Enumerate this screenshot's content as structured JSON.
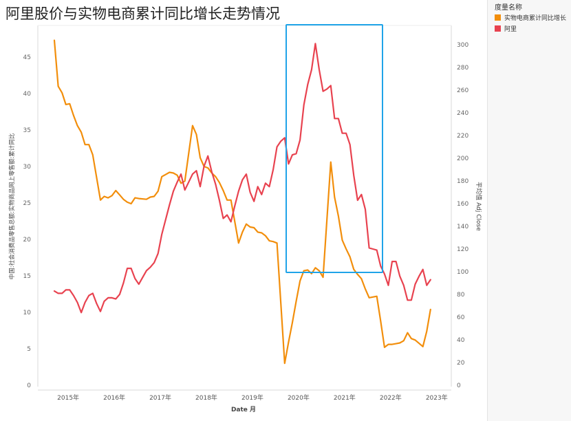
{
  "title": "阿里股价与实物电商累计同比增长走势情况",
  "legend": {
    "title": "度量名称",
    "items": [
      {
        "label": "实物电商累计同比增长",
        "color": "#f28e0b"
      },
      {
        "label": "阿里",
        "color": "#e8424f"
      }
    ]
  },
  "chart_data": {
    "type": "line",
    "xlabel": "Date 月",
    "ylabel_left": "中国:社会消费品零售总额:实物商品网上零售额:累计同比",
    "ylabel_right": "平均值 Adj Close",
    "x_ticks": [
      "2015年",
      "2016年",
      "2017年",
      "2018年",
      "2019年",
      "2020年",
      "2021年",
      "2022年",
      "2023年"
    ],
    "y_left_ticks": [
      0,
      5,
      10,
      15,
      20,
      25,
      30,
      35,
      40,
      45
    ],
    "y_right_ticks": [
      0,
      20,
      40,
      60,
      80,
      100,
      120,
      140,
      160,
      180,
      200,
      220,
      240,
      260,
      280,
      300
    ],
    "y_left_range": [
      0,
      49
    ],
    "y_right_range": [
      0,
      320
    ],
    "grid": false,
    "highlight_box": {
      "x_range": [
        "2020-02",
        "2022-03"
      ],
      "color": "#1fa3e8"
    },
    "series": [
      {
        "name": "实物电商累计同比增长",
        "axis": "left",
        "color": "#f28e0b",
        "points": [
          [
            "2015-02",
            47.3
          ],
          [
            "2015-03",
            41.0
          ],
          [
            "2015-04",
            40.1
          ],
          [
            "2015-05",
            38.5
          ],
          [
            "2015-06",
            38.6
          ],
          [
            "2015-07",
            37.0
          ],
          [
            "2015-08",
            35.6
          ],
          [
            "2015-09",
            34.7
          ],
          [
            "2015-10",
            33.0
          ],
          [
            "2015-11",
            33.0
          ],
          [
            "2015-12",
            31.6
          ],
          [
            "2016-02",
            25.4
          ],
          [
            "2016-03",
            25.9
          ],
          [
            "2016-04",
            25.7
          ],
          [
            "2016-05",
            26.0
          ],
          [
            "2016-06",
            26.7
          ],
          [
            "2016-07",
            26.1
          ],
          [
            "2016-08",
            25.5
          ],
          [
            "2016-09",
            25.1
          ],
          [
            "2016-10",
            24.9
          ],
          [
            "2016-11",
            25.7
          ],
          [
            "2016-12",
            25.6
          ],
          [
            "2017-02",
            25.5
          ],
          [
            "2017-03",
            25.8
          ],
          [
            "2017-04",
            25.9
          ],
          [
            "2017-05",
            26.6
          ],
          [
            "2017-06",
            28.6
          ],
          [
            "2017-07",
            28.9
          ],
          [
            "2017-08",
            29.2
          ],
          [
            "2017-09",
            29.1
          ],
          [
            "2017-10",
            28.8
          ],
          [
            "2017-11",
            27.7
          ],
          [
            "2017-12",
            28.0
          ],
          [
            "2018-02",
            35.6
          ],
          [
            "2018-03",
            34.4
          ],
          [
            "2018-04",
            31.2
          ],
          [
            "2018-05",
            30.0
          ],
          [
            "2018-06",
            29.8
          ],
          [
            "2018-07",
            29.1
          ],
          [
            "2018-08",
            28.6
          ],
          [
            "2018-09",
            27.8
          ],
          [
            "2018-10",
            26.7
          ],
          [
            "2018-11",
            25.4
          ],
          [
            "2018-12",
            25.4
          ],
          [
            "2019-02",
            19.5
          ],
          [
            "2019-03",
            21.0
          ],
          [
            "2019-04",
            22.1
          ],
          [
            "2019-05",
            21.7
          ],
          [
            "2019-06",
            21.6
          ],
          [
            "2019-07",
            21.0
          ],
          [
            "2019-08",
            20.9
          ],
          [
            "2019-09",
            20.5
          ],
          [
            "2019-10",
            19.8
          ],
          [
            "2019-11",
            19.7
          ],
          [
            "2019-12",
            19.5
          ],
          [
            "2020-02",
            3.0
          ],
          [
            "2020-03",
            5.9
          ],
          [
            "2020-04",
            8.6
          ],
          [
            "2020-05",
            11.5
          ],
          [
            "2020-06",
            14.3
          ],
          [
            "2020-07",
            15.7
          ],
          [
            "2020-08",
            15.8
          ],
          [
            "2020-09",
            15.3
          ],
          [
            "2020-10",
            16.1
          ],
          [
            "2020-11",
            15.7
          ],
          [
            "2020-12",
            14.8
          ],
          [
            "2021-02",
            30.6
          ],
          [
            "2021-03",
            25.8
          ],
          [
            "2021-04",
            23.2
          ],
          [
            "2021-05",
            19.9
          ],
          [
            "2021-06",
            18.7
          ],
          [
            "2021-07",
            17.6
          ],
          [
            "2021-08",
            15.9
          ],
          [
            "2021-09",
            15.2
          ],
          [
            "2021-10",
            14.6
          ],
          [
            "2021-11",
            13.2
          ],
          [
            "2021-12",
            12.0
          ],
          [
            "2022-02",
            12.2
          ],
          [
            "2022-03",
            8.8
          ],
          [
            "2022-04",
            5.2
          ],
          [
            "2022-05",
            5.6
          ],
          [
            "2022-06",
            5.6
          ],
          [
            "2022-07",
            5.7
          ],
          [
            "2022-08",
            5.8
          ],
          [
            "2022-09",
            6.1
          ],
          [
            "2022-10",
            7.2
          ],
          [
            "2022-11",
            6.4
          ],
          [
            "2022-12",
            6.2
          ],
          [
            "2023-02",
            5.3
          ],
          [
            "2023-03",
            7.4
          ],
          [
            "2023-04",
            10.4
          ]
        ]
      },
      {
        "name": "阿里",
        "axis": "right",
        "color": "#e8424f",
        "points": [
          [
            "2015-02",
            83
          ],
          [
            "2015-03",
            81
          ],
          [
            "2015-04",
            81
          ],
          [
            "2015-05",
            84
          ],
          [
            "2015-06",
            84
          ],
          [
            "2015-07",
            79
          ],
          [
            "2015-08",
            73
          ],
          [
            "2015-09",
            64
          ],
          [
            "2015-10",
            73
          ],
          [
            "2015-11",
            79
          ],
          [
            "2015-12",
            81
          ],
          [
            "2016-01",
            72
          ],
          [
            "2016-02",
            65
          ],
          [
            "2016-03",
            74
          ],
          [
            "2016-04",
            77
          ],
          [
            "2016-05",
            77
          ],
          [
            "2016-06",
            76
          ],
          [
            "2016-07",
            80
          ],
          [
            "2016-08",
            90
          ],
          [
            "2016-09",
            103
          ],
          [
            "2016-10",
            103
          ],
          [
            "2016-11",
            94
          ],
          [
            "2016-12",
            89
          ],
          [
            "2017-01",
            95
          ],
          [
            "2017-02",
            101
          ],
          [
            "2017-03",
            104
          ],
          [
            "2017-04",
            108
          ],
          [
            "2017-05",
            116
          ],
          [
            "2017-06",
            133
          ],
          [
            "2017-07",
            146
          ],
          [
            "2017-08",
            159
          ],
          [
            "2017-09",
            171
          ],
          [
            "2017-10",
            179
          ],
          [
            "2017-11",
            186
          ],
          [
            "2017-12",
            172
          ],
          [
            "2018-01",
            179
          ],
          [
            "2018-02",
            186
          ],
          [
            "2018-03",
            189
          ],
          [
            "2018-04",
            175
          ],
          [
            "2018-05",
            193
          ],
          [
            "2018-06",
            202
          ],
          [
            "2018-07",
            188
          ],
          [
            "2018-08",
            177
          ],
          [
            "2018-09",
            163
          ],
          [
            "2018-10",
            147
          ],
          [
            "2018-11",
            150
          ],
          [
            "2018-12",
            144
          ],
          [
            "2019-01",
            158
          ],
          [
            "2019-02",
            171
          ],
          [
            "2019-03",
            181
          ],
          [
            "2019-04",
            186
          ],
          [
            "2019-05",
            170
          ],
          [
            "2019-06",
            162
          ],
          [
            "2019-07",
            175
          ],
          [
            "2019-08",
            168
          ],
          [
            "2019-09",
            178
          ],
          [
            "2019-10",
            175
          ],
          [
            "2019-11",
            190
          ],
          [
            "2019-12",
            210
          ],
          [
            "2020-01",
            215
          ],
          [
            "2020-02",
            218
          ],
          [
            "2020-03",
            195
          ],
          [
            "2020-04",
            203
          ],
          [
            "2020-05",
            204
          ],
          [
            "2020-06",
            216
          ],
          [
            "2020-07",
            247
          ],
          [
            "2020-08",
            265
          ],
          [
            "2020-09",
            278
          ],
          [
            "2020-10",
            301
          ],
          [
            "2020-11",
            278
          ],
          [
            "2020-12",
            259
          ],
          [
            "2021-01",
            261
          ],
          [
            "2021-02",
            264
          ],
          [
            "2021-03",
            235
          ],
          [
            "2021-04",
            235
          ],
          [
            "2021-05",
            222
          ],
          [
            "2021-06",
            222
          ],
          [
            "2021-07",
            212
          ],
          [
            "2021-08",
            185
          ],
          [
            "2021-09",
            163
          ],
          [
            "2021-10",
            168
          ],
          [
            "2021-11",
            155
          ],
          [
            "2021-12",
            121
          ],
          [
            "2022-01",
            120
          ],
          [
            "2022-02",
            119
          ],
          [
            "2022-03",
            105
          ],
          [
            "2022-04",
            98
          ],
          [
            "2022-05",
            88
          ],
          [
            "2022-06",
            109
          ],
          [
            "2022-07",
            109
          ],
          [
            "2022-08",
            96
          ],
          [
            "2022-09",
            88
          ],
          [
            "2022-10",
            75
          ],
          [
            "2022-11",
            75
          ],
          [
            "2022-12",
            89
          ],
          [
            "2023-01",
            96
          ],
          [
            "2023-02",
            102
          ],
          [
            "2023-03",
            88
          ],
          [
            "2023-04",
            93
          ]
        ]
      }
    ]
  }
}
